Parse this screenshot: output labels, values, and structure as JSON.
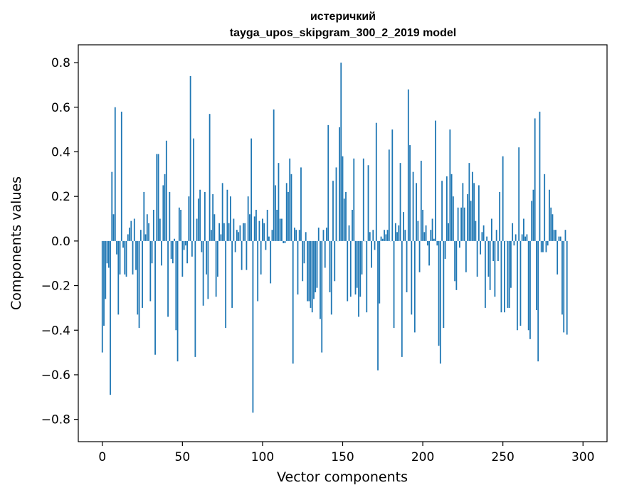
{
  "chart_data": {
    "type": "bar",
    "title": "истеричкий",
    "subtitle": "tayga_upos_skipgram_300_2_2019 model",
    "xlabel": "Vector components",
    "ylabel": "Components values",
    "xlim": [
      -15,
      315
    ],
    "ylim": [
      -0.9,
      0.88
    ],
    "xticks": [
      0,
      50,
      100,
      150,
      200,
      250,
      300
    ],
    "xtick_labels": [
      "0",
      "50",
      "100",
      "150",
      "200",
      "250",
      "300"
    ],
    "yticks": [
      -0.8,
      -0.6,
      -0.4,
      -0.2,
      0.0,
      0.2,
      0.4,
      0.6,
      0.8
    ],
    "ytick_labels": [
      "−0.8",
      "−0.6",
      "−0.4",
      "−0.2",
      "0.0",
      "0.2",
      "0.4",
      "0.6",
      "0.8"
    ],
    "bar_color": "#1f77b4",
    "grid": false,
    "legend": "none",
    "values": [
      -0.5,
      -0.38,
      -0.26,
      -0.1,
      -0.12,
      -0.69,
      0.31,
      0.12,
      0.6,
      -0.06,
      -0.33,
      -0.15,
      0.58,
      -0.03,
      -0.15,
      -0.16,
      0.03,
      0.06,
      0.09,
      -0.15,
      0.1,
      -0.13,
      -0.33,
      -0.39,
      0.05,
      -0.3,
      0.22,
      0.03,
      0.12,
      0.08,
      -0.27,
      -0.1,
      0.14,
      -0.51,
      0.39,
      0.39,
      0.1,
      -0.11,
      0.25,
      0.3,
      0.45,
      -0.34,
      0.22,
      -0.08,
      -0.1,
      0.01,
      -0.4,
      -0.54,
      0.15,
      0.14,
      -0.16,
      -0.04,
      -0.02,
      -0.1,
      0.2,
      0.74,
      -0.07,
      0.46,
      -0.52,
      0.1,
      0.19,
      0.23,
      -0.05,
      -0.29,
      0.22,
      -0.15,
      -0.26,
      0.57,
      0.05,
      0.21,
      0.12,
      -0.25,
      -0.16,
      0.08,
      0.03,
      0.26,
      0.08,
      -0.39,
      0.23,
      0.08,
      0.2,
      -0.3,
      0.1,
      -0.05,
      0.05,
      0.04,
      0.07,
      -0.13,
      0.08,
      0.08,
      -0.13,
      0.2,
      0.12,
      0.46,
      -0.77,
      0.11,
      0.14,
      -0.27,
      0.09,
      -0.15,
      0.1,
      0.08,
      -0.04,
      0.14,
      0.02,
      -0.19,
      0.05,
      0.59,
      0.25,
      0.14,
      0.35,
      0.1,
      0.1,
      -0.01,
      -0.01,
      0.26,
      0.22,
      0.37,
      0.3,
      -0.55,
      0.06,
      0.05,
      -0.24,
      0.05,
      0.33,
      -0.18,
      -0.1,
      0.04,
      -0.27,
      -0.27,
      -0.3,
      -0.32,
      -0.26,
      -0.23,
      -0.21,
      0.06,
      -0.35,
      -0.5,
      0.05,
      -0.12,
      0.06,
      0.52,
      -0.23,
      -0.33,
      0.27,
      -0.18,
      0.33,
      0.0,
      0.51,
      0.8,
      0.38,
      0.19,
      0.22,
      -0.27,
      0.07,
      -0.25,
      0.14,
      0.37,
      -0.24,
      -0.21,
      -0.34,
      -0.25,
      -0.15,
      0.37,
      0.0,
      -0.32,
      0.34,
      0.04,
      -0.12,
      0.05,
      -0.04,
      0.53,
      -0.58,
      -0.28,
      0.02,
      0.01,
      0.05,
      0.03,
      0.05,
      0.41,
      0.0,
      0.5,
      -0.39,
      0.08,
      0.04,
      0.07,
      0.35,
      -0.52,
      0.13,
      0.05,
      -0.23,
      0.68,
      0.43,
      -0.33,
      0.31,
      -0.41,
      0.26,
      0.09,
      -0.14,
      0.36,
      0.14,
      0.04,
      0.07,
      -0.02,
      -0.11,
      0.05,
      0.1,
      0.01,
      0.54,
      -0.02,
      -0.47,
      -0.55,
      0.27,
      -0.39,
      -0.08,
      0.29,
      0.08,
      0.5,
      0.3,
      0.2,
      -0.18,
      -0.22,
      0.15,
      -0.03,
      0.15,
      0.26,
      0.15,
      -0.14,
      0.21,
      0.35,
      0.18,
      0.31,
      0.26,
      0.09,
      -0.16,
      0.25,
      -0.06,
      0.04,
      0.07,
      -0.3,
      0.02,
      -0.16,
      -0.22,
      0.1,
      -0.09,
      -0.25,
      0.05,
      -0.09,
      0.22,
      -0.32,
      0.38,
      -0.32,
      0.0,
      -0.3,
      -0.3,
      -0.21,
      0.08,
      -0.02,
      0.03,
      -0.4,
      0.42,
      -0.38,
      0.03,
      0.1,
      0.02,
      0.03,
      -0.4,
      -0.44,
      0.18,
      0.23,
      0.55,
      -0.31,
      -0.54,
      0.58,
      -0.05,
      -0.05,
      0.3,
      -0.05,
      -0.02,
      0.23,
      0.15,
      0.12,
      0.05,
      0.05,
      -0.15,
      0.02,
      0.02,
      -0.33,
      -0.41,
      0.05,
      -0.42
    ]
  }
}
